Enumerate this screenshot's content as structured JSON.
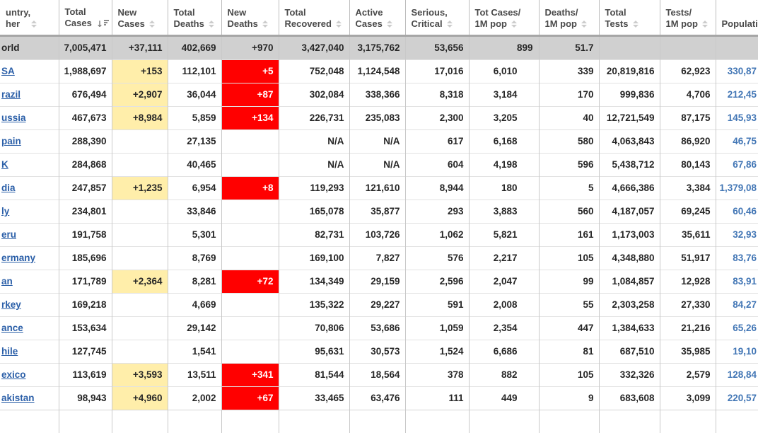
{
  "colors": {
    "highlight_new_cases": "#FFEEAA",
    "highlight_new_deaths": "#FF0000",
    "world_row_bg": "#D0D0D0",
    "country_link": "#2B5FA8",
    "population_link": "#4276B5"
  },
  "table": {
    "columns": [
      {
        "key": "country",
        "lines": [
          "untry,",
          "her"
        ],
        "sort": "inactive"
      },
      {
        "key": "total-cases",
        "lines": [
          "Total",
          "Cases"
        ],
        "sort": "active-desc"
      },
      {
        "key": "new-cases",
        "lines": [
          "New",
          "Cases"
        ],
        "sort": "inactive"
      },
      {
        "key": "total-deaths",
        "lines": [
          "Total",
          "Deaths"
        ],
        "sort": "inactive"
      },
      {
        "key": "new-deaths",
        "lines": [
          "New",
          "Deaths"
        ],
        "sort": "inactive"
      },
      {
        "key": "total-recovered",
        "lines": [
          "Total",
          "Recovered"
        ],
        "sort": "inactive"
      },
      {
        "key": "active-cases",
        "lines": [
          "Active",
          "Cases"
        ],
        "sort": "inactive"
      },
      {
        "key": "serious-critical",
        "lines": [
          "Serious,",
          "Critical"
        ],
        "sort": "inactive"
      },
      {
        "key": "cases-1m",
        "lines": [
          "Tot Cases/",
          "1M pop"
        ],
        "sort": "inactive"
      },
      {
        "key": "deaths-1m",
        "lines": [
          "Deaths/",
          "1M pop"
        ],
        "sort": "inactive"
      },
      {
        "key": "total-tests",
        "lines": [
          "Total",
          "Tests"
        ],
        "sort": "inactive"
      },
      {
        "key": "tests-1m",
        "lines": [
          "Tests/",
          "1M pop"
        ],
        "sort": "inactive"
      },
      {
        "key": "population",
        "lines": [
          "",
          "Populati"
        ],
        "sort": "none"
      }
    ],
    "rows": [
      {
        "world": true,
        "country": "orld",
        "cells": [
          "7,005,471",
          "+37,111",
          "402,669",
          "+970",
          "3,427,040",
          "3,175,762",
          "53,656",
          "899",
          "51.7",
          "",
          "",
          ""
        ]
      },
      {
        "world": false,
        "country": "SA",
        "cells": [
          "1,988,697",
          "+153",
          "112,101",
          "+5",
          "752,048",
          "1,124,548",
          "17,016",
          "6,010",
          "339",
          "20,819,816",
          "62,923",
          "330,87"
        ]
      },
      {
        "world": false,
        "country": "razil",
        "cells": [
          "676,494",
          "+2,907",
          "36,044",
          "+87",
          "302,084",
          "338,366",
          "8,318",
          "3,184",
          "170",
          "999,836",
          "4,706",
          "212,45"
        ]
      },
      {
        "world": false,
        "country": "ussia",
        "cells": [
          "467,673",
          "+8,984",
          "5,859",
          "+134",
          "226,731",
          "235,083",
          "2,300",
          "3,205",
          "40",
          "12,721,549",
          "87,175",
          "145,93"
        ]
      },
      {
        "world": false,
        "country": "pain",
        "cells": [
          "288,390",
          "",
          "27,135",
          "",
          "N/A",
          "N/A",
          "617",
          "6,168",
          "580",
          "4,063,843",
          "86,920",
          "46,75"
        ]
      },
      {
        "world": false,
        "country": "K",
        "cells": [
          "284,868",
          "",
          "40,465",
          "",
          "N/A",
          "N/A",
          "604",
          "4,198",
          "596",
          "5,438,712",
          "80,143",
          "67,86"
        ]
      },
      {
        "world": false,
        "country": "dia",
        "cells": [
          "247,857",
          "+1,235",
          "6,954",
          "+8",
          "119,293",
          "121,610",
          "8,944",
          "180",
          "5",
          "4,666,386",
          "3,384",
          "1,379,08"
        ]
      },
      {
        "world": false,
        "country": "ly",
        "cells": [
          "234,801",
          "",
          "33,846",
          "",
          "165,078",
          "35,877",
          "293",
          "3,883",
          "560",
          "4,187,057",
          "69,245",
          "60,46"
        ]
      },
      {
        "world": false,
        "country": "eru",
        "cells": [
          "191,758",
          "",
          "5,301",
          "",
          "82,731",
          "103,726",
          "1,062",
          "5,821",
          "161",
          "1,173,003",
          "35,611",
          "32,93"
        ]
      },
      {
        "world": false,
        "country": "ermany",
        "cells": [
          "185,696",
          "",
          "8,769",
          "",
          "169,100",
          "7,827",
          "576",
          "2,217",
          "105",
          "4,348,880",
          "51,917",
          "83,76"
        ]
      },
      {
        "world": false,
        "country": "an",
        "cells": [
          "171,789",
          "+2,364",
          "8,281",
          "+72",
          "134,349",
          "29,159",
          "2,596",
          "2,047",
          "99",
          "1,084,857",
          "12,928",
          "83,91"
        ]
      },
      {
        "world": false,
        "country": "rkey",
        "cells": [
          "169,218",
          "",
          "4,669",
          "",
          "135,322",
          "29,227",
          "591",
          "2,008",
          "55",
          "2,303,258",
          "27,330",
          "84,27"
        ]
      },
      {
        "world": false,
        "country": "ance",
        "cells": [
          "153,634",
          "",
          "29,142",
          "",
          "70,806",
          "53,686",
          "1,059",
          "2,354",
          "447",
          "1,384,633",
          "21,216",
          "65,26"
        ]
      },
      {
        "world": false,
        "country": "hile",
        "cells": [
          "127,745",
          "",
          "1,541",
          "",
          "95,631",
          "30,573",
          "1,524",
          "6,686",
          "81",
          "687,510",
          "35,985",
          "19,10"
        ]
      },
      {
        "world": false,
        "country": "exico",
        "cells": [
          "113,619",
          "+3,593",
          "13,511",
          "+341",
          "81,544",
          "18,564",
          "378",
          "882",
          "105",
          "332,326",
          "2,579",
          "128,84"
        ]
      },
      {
        "world": false,
        "country": "akistan",
        "cells": [
          "98,943",
          "+4,960",
          "2,002",
          "+67",
          "33,465",
          "63,476",
          "111",
          "449",
          "9",
          "683,608",
          "3,099",
          "220,57"
        ]
      }
    ]
  }
}
